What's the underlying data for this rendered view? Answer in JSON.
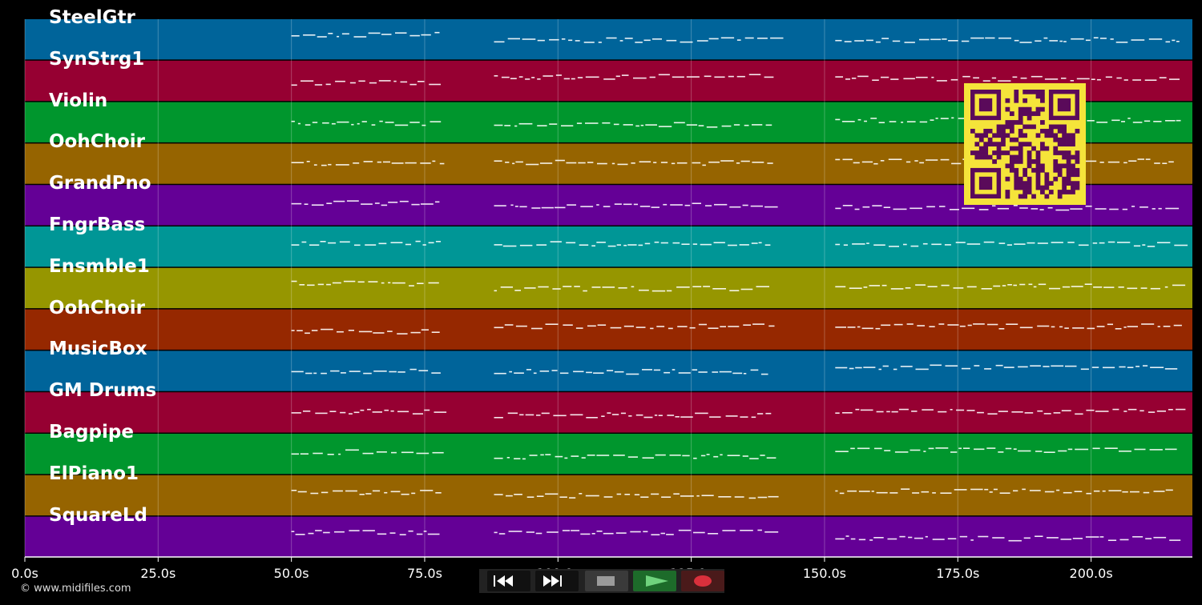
{
  "tracks": [
    {
      "name": "SteelGtr",
      "color": "#00649a"
    },
    {
      "name": "SynStrg1",
      "color": "#960032"
    },
    {
      "name": "Violin",
      "color": "#00962d"
    },
    {
      "name": "OohChoir",
      "color": "#966400"
    },
    {
      "name": "GrandPno",
      "color": "#640096"
    },
    {
      "name": "FngrBass",
      "color": "#009696"
    },
    {
      "name": "Ensmble1",
      "color": "#969600"
    },
    {
      "name": "OohChoir",
      "color": "#962800"
    },
    {
      "name": "MusicBox",
      "color": "#00649a"
    },
    {
      "name": "GM Drums",
      "color": "#960032"
    },
    {
      "name": "Bagpipe",
      "color": "#00962d"
    },
    {
      "name": "ElPiano1",
      "color": "#966400"
    },
    {
      "name": "SquareLd",
      "color": "#640096"
    }
  ],
  "time_axis": {
    "start_seconds": 0,
    "end_seconds": 219,
    "ticks": [
      "0.0s",
      "25.0s",
      "50.0s",
      "75.0s",
      "100.0s",
      "125.0s",
      "150.0s",
      "175.0s",
      "200.0s"
    ],
    "tick_values": [
      0,
      25,
      50,
      75,
      100,
      125,
      150,
      175,
      200
    ]
  },
  "transport": {
    "rewind": "rewind-icon",
    "fast_forward": "fast-forward-icon",
    "stop": "stop-icon",
    "play": "play-icon",
    "record": "record-icon"
  },
  "copyright": "© www.midifiles.com",
  "qr_code": "qr-code-icon"
}
